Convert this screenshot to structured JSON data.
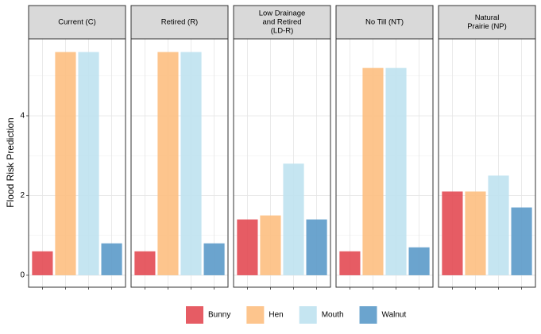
{
  "chart_data": {
    "type": "bar",
    "ylabel": "Flood Risk Prediction",
    "facets": [
      [
        "Current (C)"
      ],
      [
        "Retired (R)"
      ],
      [
        "Low Drainage",
        "and Retired",
        "(LD-R)"
      ],
      [
        "No Till (NT)"
      ],
      [
        "Natural",
        "Prairie (NP)"
      ]
    ],
    "series": [
      {
        "name": "Bunny",
        "color": "#e34a53",
        "values": [
          0.6,
          0.6,
          1.4,
          0.6,
          2.1
        ]
      },
      {
        "name": "Hen",
        "color": "#fdbf81",
        "values": [
          5.6,
          5.6,
          1.5,
          5.2,
          2.1
        ]
      },
      {
        "name": "Mouth",
        "color": "#bfe2ef",
        "values": [
          5.6,
          5.6,
          2.8,
          5.2,
          2.5
        ]
      },
      {
        "name": "Walnut",
        "color": "#5b9ac9",
        "values": [
          0.8,
          0.8,
          1.4,
          0.7,
          1.7
        ]
      }
    ],
    "ylim": [
      -0.3,
      5.93
    ],
    "yticks": [
      0,
      2,
      4
    ],
    "grid": true,
    "legend": "bottom"
  }
}
